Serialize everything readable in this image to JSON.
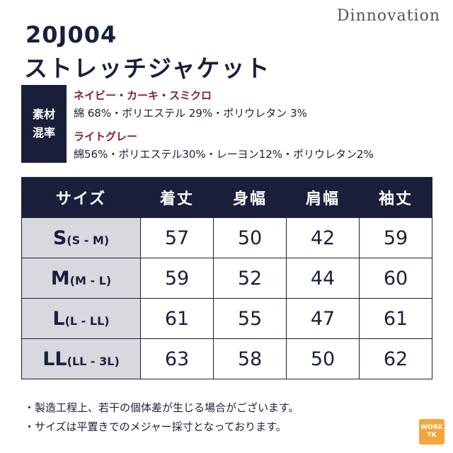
{
  "brand": "Dinnovation",
  "product": {
    "code": "20J004",
    "name": "ストレッチジャケット"
  },
  "material": {
    "label_line1": "素材",
    "label_line2": "混率",
    "groups": [
      {
        "colors": "ネイビー・カーキ・スミクロ",
        "composition": "綿 68%・ポリエステル 29%・ポリウレタン 3%"
      },
      {
        "colors": "ライトグレー",
        "composition": "綿56%・ポリエステル30%・レーヨン12%・ポリウレタン2%"
      }
    ]
  },
  "size_table": {
    "headers": [
      "サイズ",
      "着丈",
      "身幅",
      "肩幅",
      "袖丈"
    ],
    "rows": [
      {
        "size": "S",
        "sub": "(S - M)",
        "values": [
          "57",
          "50",
          "42",
          "59"
        ]
      },
      {
        "size": "M",
        "sub": "(M - L)",
        "values": [
          "59",
          "52",
          "44",
          "60"
        ]
      },
      {
        "size": "L",
        "sub": "(L - LL)",
        "values": [
          "61",
          "55",
          "47",
          "61"
        ]
      },
      {
        "size": "LL",
        "sub": "(LL - 3L)",
        "values": [
          "63",
          "58",
          "50",
          "62"
        ]
      }
    ]
  },
  "notes": [
    "・製造工程上、若干の個体差が生じる場合がございます。",
    "・サイズは平置きでのメジャー採寸となっております。"
  ],
  "logo": {
    "line1": "WORK",
    "line2": "TK"
  },
  "colors": {
    "navy": "#1b1f3b",
    "accent_red": "#8b1e2b",
    "size_cell_gray": "#d8d9de",
    "logo_orange": "#f3a63a"
  }
}
